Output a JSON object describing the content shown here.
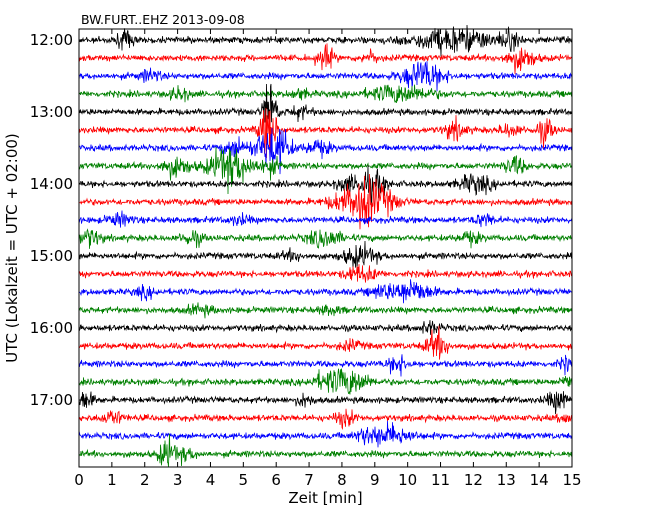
{
  "chart_data": {
    "type": "line",
    "title": "BW.FURT..EHZ 2013-09-08",
    "xlabel": "Zeit  [min]",
    "ylabel": "UTC (Lokalzeit = UTC + 02:00)",
    "xlim": [
      0,
      15
    ],
    "x_ticks": [
      "0",
      "1",
      "2",
      "3",
      "4",
      "5",
      "6",
      "7",
      "8",
      "9",
      "10",
      "11",
      "12",
      "13",
      "14",
      "15"
    ],
    "y_ticks": [
      "12:00",
      "13:00",
      "14:00",
      "15:00",
      "16:00",
      "17:00"
    ],
    "trace_interval_minutes": 15,
    "grid": false,
    "colors": [
      "#000000",
      "#ff0000",
      "#0000ff",
      "#008000"
    ],
    "series": [
      {
        "start": "12:00",
        "color": "#000000"
      },
      {
        "start": "12:15",
        "color": "#ff0000"
      },
      {
        "start": "12:30",
        "color": "#0000ff"
      },
      {
        "start": "12:45",
        "color": "#008000"
      },
      {
        "start": "13:00",
        "color": "#000000"
      },
      {
        "start": "13:15",
        "color": "#ff0000"
      },
      {
        "start": "13:30",
        "color": "#0000ff"
      },
      {
        "start": "13:45",
        "color": "#008000"
      },
      {
        "start": "14:00",
        "color": "#000000"
      },
      {
        "start": "14:15",
        "color": "#ff0000"
      },
      {
        "start": "14:30",
        "color": "#0000ff"
      },
      {
        "start": "14:45",
        "color": "#008000"
      },
      {
        "start": "15:00",
        "color": "#000000"
      },
      {
        "start": "15:15",
        "color": "#ff0000"
      },
      {
        "start": "15:30",
        "color": "#0000ff"
      },
      {
        "start": "15:45",
        "color": "#008000"
      },
      {
        "start": "16:00",
        "color": "#000000"
      },
      {
        "start": "16:15",
        "color": "#ff0000"
      },
      {
        "start": "16:30",
        "color": "#0000ff"
      },
      {
        "start": "16:45",
        "color": "#008000"
      },
      {
        "start": "17:00",
        "color": "#000000"
      },
      {
        "start": "17:15",
        "color": "#ff0000"
      },
      {
        "start": "17:30",
        "color": "#0000ff"
      },
      {
        "start": "17:45",
        "color": "#008000"
      }
    ]
  }
}
